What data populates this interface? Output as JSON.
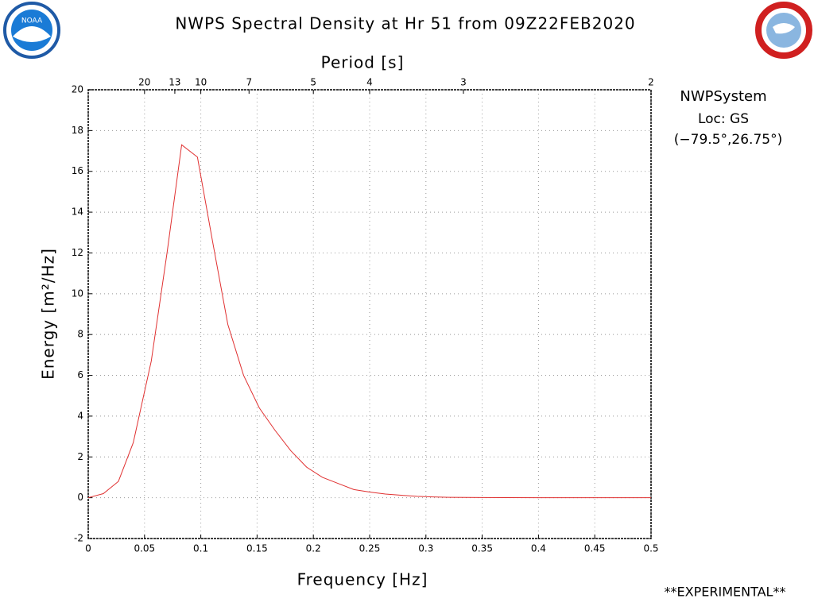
{
  "chart_data": {
    "type": "line",
    "title": "NWPS Spectral Density at Hr 51 from 09Z22FEB2020",
    "xlabel": "Frequency [Hz]",
    "ylabel": "Energy [m²/Hz]",
    "x2label": "Period [s]",
    "annotations": [
      "NWPSystem",
      "Loc: GS",
      "(−79.5°,26.75°)"
    ],
    "footer": "**EXPERIMENTAL**",
    "logo_text": "NOAA",
    "color": "#e03030",
    "grid": true,
    "x": [
      0,
      0.0134,
      0.0268,
      0.04,
      0.056,
      0.07,
      0.083,
      0.097,
      0.111,
      0.124,
      0.138,
      0.152,
      0.166,
      0.18,
      0.194,
      0.208,
      0.222,
      0.236,
      0.25,
      0.264,
      0.278,
      0.292,
      0.306,
      0.32,
      0.35,
      0.4,
      0.45,
      0.5
    ],
    "values": [
      0,
      0.2,
      0.8,
      2.7,
      6.7,
      12,
      17.3,
      16.7,
      12.4,
      8.5,
      6,
      4.4,
      3.3,
      2.3,
      1.5,
      1.0,
      0.7,
      0.4,
      0.28,
      0.18,
      0.12,
      0.07,
      0.04,
      0.02,
      0.01,
      0,
      0,
      0
    ],
    "xlim": [
      0,
      0.5
    ],
    "ylim": [
      -2,
      20
    ],
    "xticks": [
      0,
      0.05,
      0.1,
      0.15,
      0.2,
      0.25,
      0.3,
      0.35,
      0.4,
      0.45,
      0.5
    ],
    "yticks": [
      -2,
      0,
      2,
      4,
      6,
      8,
      10,
      12,
      14,
      16,
      18,
      20
    ],
    "x2ticks": [
      20,
      13,
      10,
      7,
      5,
      4,
      3,
      2
    ]
  }
}
